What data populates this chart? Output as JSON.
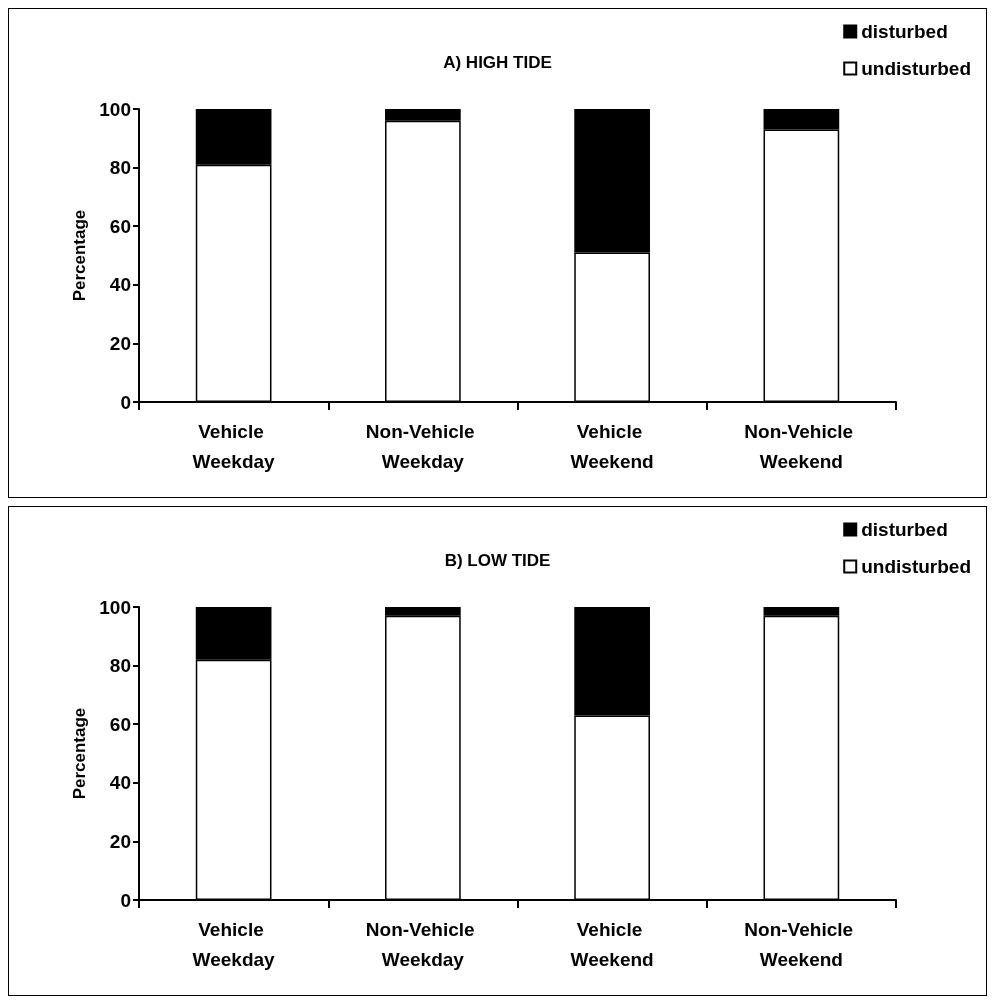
{
  "chart_data": [
    {
      "type": "bar",
      "title": "A) HIGH TIDE",
      "ylabel": "Percentage",
      "categories": [
        "Vehicle Weekday",
        "Non-Vehicle Weekday",
        "Vehicle Weekend",
        "Non-Vehicle Weekend"
      ],
      "stacked": true,
      "series": [
        {
          "name": "undisturbed",
          "color": "#ffffff",
          "values": [
            81,
            96,
            51,
            93
          ]
        },
        {
          "name": "disturbed",
          "color": "#000000",
          "values": [
            19,
            4,
            49,
            7
          ]
        }
      ],
      "ylim": [
        0,
        100
      ],
      "yticks": [
        0,
        20,
        40,
        60,
        80,
        100
      ],
      "grid": false,
      "legend": "top right"
    },
    {
      "type": "bar",
      "title": "B) LOW TIDE",
      "ylabel": "Percentage",
      "categories": [
        "Vehicle Weekday",
        "Non-Vehicle Weekday",
        "Vehicle Weekend",
        "Non-Vehicle Weekend"
      ],
      "stacked": true,
      "series": [
        {
          "name": "undisturbed",
          "color": "#ffffff",
          "values": [
            82,
            97,
            63,
            97
          ]
        },
        {
          "name": "disturbed",
          "color": "#000000",
          "values": [
            18,
            3,
            37,
            3
          ]
        }
      ],
      "ylim": [
        0,
        100
      ],
      "yticks": [
        0,
        20,
        40,
        60,
        80,
        100
      ],
      "grid": false,
      "legend": "top right"
    }
  ]
}
